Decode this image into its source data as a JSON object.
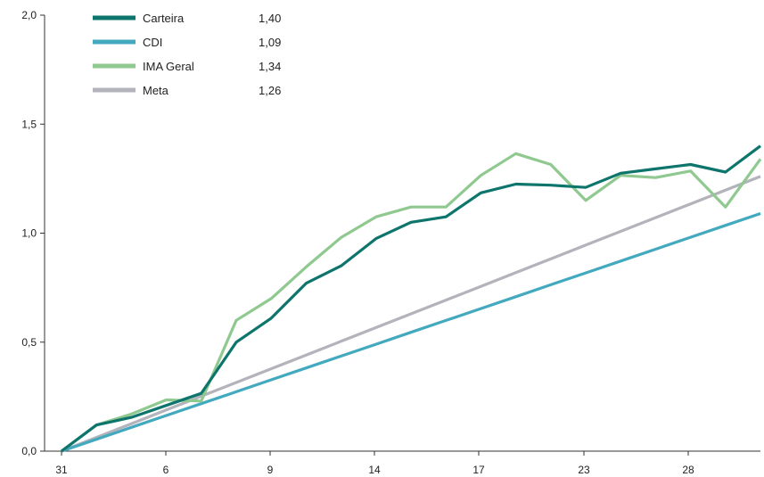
{
  "chart_data": {
    "type": "line",
    "title": "",
    "xlabel": "",
    "ylabel": "",
    "ylim": [
      0,
      2
    ],
    "y_ticks": [
      "0,0",
      "0,5",
      "1,0",
      "1,5",
      "2,0"
    ],
    "x_ticks": [
      "31",
      "6",
      "9",
      "14",
      "17",
      "23",
      "28"
    ],
    "grid": false,
    "legend_position": "top-left",
    "x_count": 21,
    "series": [
      {
        "name": "Carteira",
        "final_value": "1,40",
        "color": "#0e756d",
        "values": [
          0.0,
          0.12,
          0.155,
          0.21,
          0.265,
          0.5,
          0.61,
          0.77,
          0.85,
          0.975,
          1.05,
          1.075,
          1.185,
          1.225,
          1.22,
          1.21,
          1.275,
          1.295,
          1.315,
          1.28,
          1.4
        ]
      },
      {
        "name": "CDI",
        "final_value": "1,09",
        "color": "#43a9bf",
        "values": [
          0.0,
          0.0545,
          0.109,
          0.1635,
          0.218,
          0.2725,
          0.327,
          0.3815,
          0.436,
          0.4905,
          0.545,
          0.5995,
          0.654,
          0.7085,
          0.763,
          0.8175,
          0.872,
          0.9265,
          0.981,
          1.0355,
          1.09
        ]
      },
      {
        "name": "IMA Geral",
        "final_value": "1,34",
        "color": "#90c990",
        "values": [
          0.0,
          0.12,
          0.17,
          0.235,
          0.23,
          0.6,
          0.7,
          0.845,
          0.98,
          1.075,
          1.12,
          1.12,
          1.265,
          1.365,
          1.315,
          1.15,
          1.265,
          1.255,
          1.285,
          1.12,
          1.34
        ]
      },
      {
        "name": "Meta",
        "final_value": "1,26",
        "color": "#b3b3bb",
        "values": [
          0.0,
          0.063,
          0.126,
          0.189,
          0.252,
          0.315,
          0.378,
          0.441,
          0.504,
          0.567,
          0.63,
          0.693,
          0.756,
          0.819,
          0.882,
          0.945,
          1.008,
          1.071,
          1.134,
          1.197,
          1.26
        ]
      }
    ]
  }
}
